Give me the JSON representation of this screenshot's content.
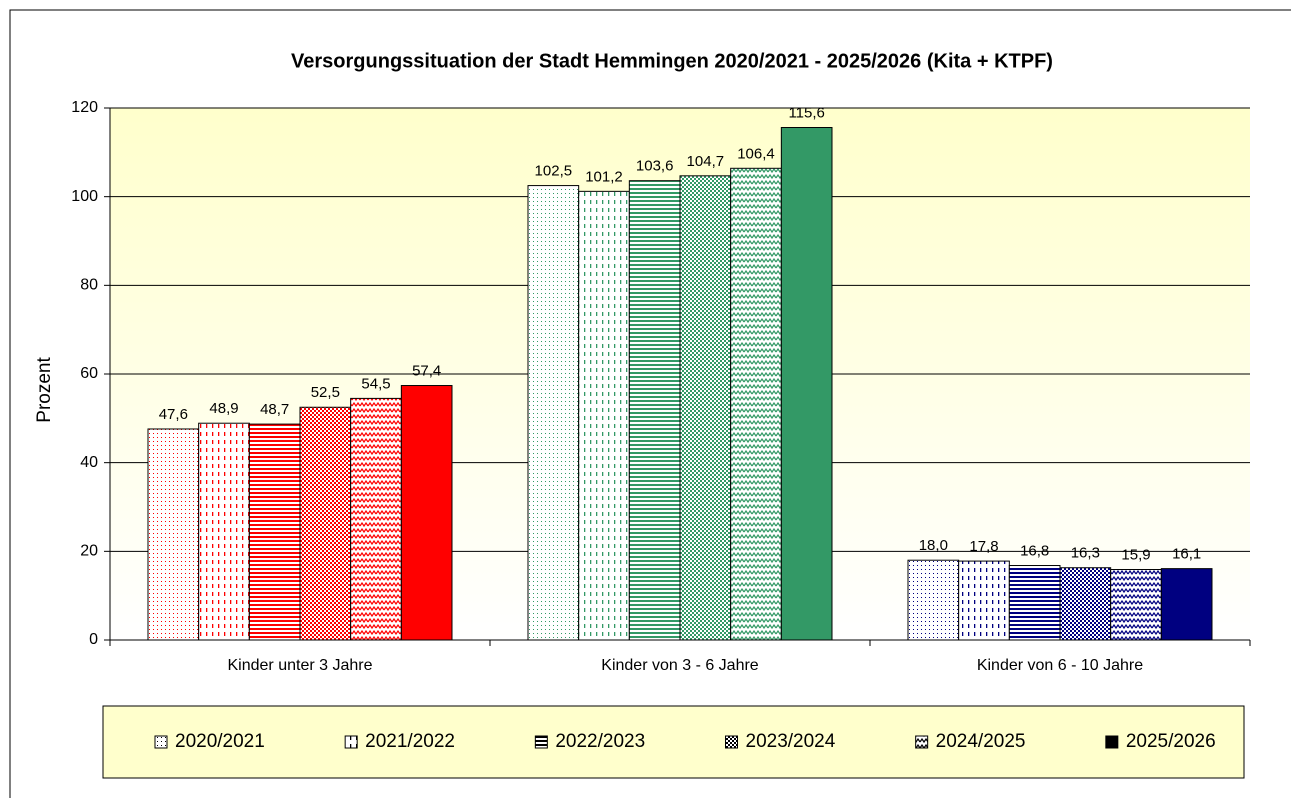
{
  "chart_data": {
    "type": "bar",
    "title": "Versorgungssituation der Stadt Hemmingen 2020/2021 - 2025/2026 (Kita + KTPF)",
    "y_label": "Prozent",
    "categories": [
      "Kinder unter 3 Jahre",
      "Kinder von 3 - 6 Jahre",
      "Kinder von 6 - 10 Jahre"
    ],
    "category_colors": [
      "#ff0000",
      "#339966",
      "#000080"
    ],
    "series": [
      {
        "name": "2020/2021",
        "pattern": "dots",
        "values": [
          47.6,
          102.5,
          18.0
        ],
        "value_labels": [
          "47,6",
          "102,5",
          "18,0"
        ]
      },
      {
        "name": "2021/2022",
        "pattern": "vertical-dashes",
        "values": [
          48.9,
          101.2,
          17.8
        ],
        "value_labels": [
          "48,9",
          "101,2",
          "17,8"
        ]
      },
      {
        "name": "2022/2023",
        "pattern": "horizontal",
        "values": [
          48.7,
          103.6,
          16.8
        ],
        "value_labels": [
          "48,7",
          "103,6",
          "16,8"
        ]
      },
      {
        "name": "2023/2024",
        "pattern": "checker",
        "values": [
          52.5,
          104.7,
          16.3
        ],
        "value_labels": [
          "52,5",
          "104,7",
          "16,3"
        ]
      },
      {
        "name": "2024/2025",
        "pattern": "wave",
        "values": [
          54.5,
          106.4,
          15.9
        ],
        "value_labels": [
          "54,5",
          "106,4",
          "15,9"
        ]
      },
      {
        "name": "2025/2026",
        "pattern": "solid",
        "values": [
          57.4,
          115.6,
          16.1
        ],
        "value_labels": [
          "57,4",
          "115,6",
          "16,1"
        ]
      }
    ],
    "ylim": [
      0,
      120
    ],
    "yticks": [
      0,
      20,
      40,
      60,
      80,
      100,
      120
    ],
    "grid": true,
    "legend": "bottom",
    "plot_background": "#ffffcc"
  }
}
